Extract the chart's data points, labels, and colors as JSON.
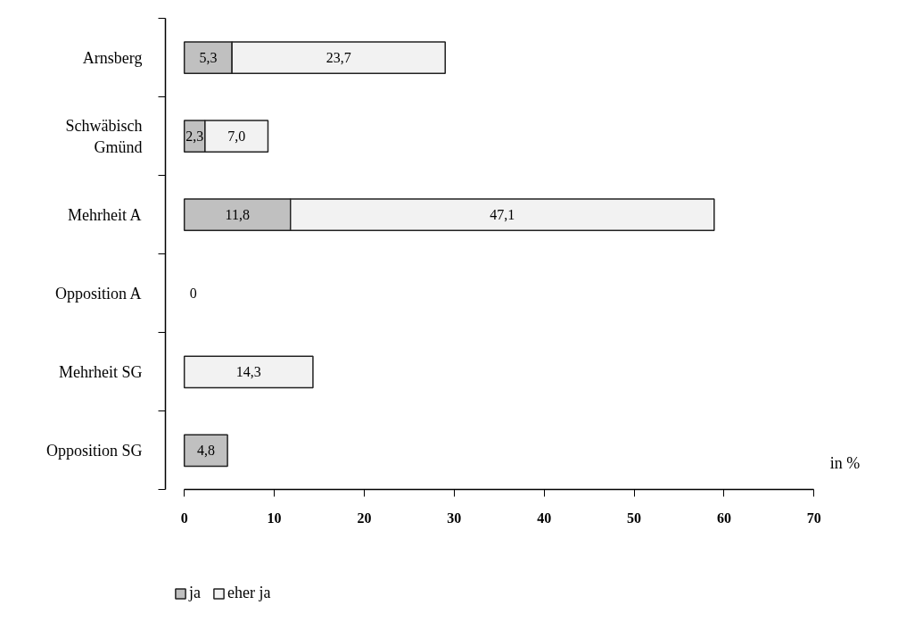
{
  "chart_data": {
    "type": "bar",
    "orientation": "horizontal",
    "stacked": true,
    "xlabel": "in %",
    "categories": [
      "Arnsberg",
      "Schwäbisch Gmünd",
      "Mehrheit A",
      "Opposition A",
      "Mehrheit SG",
      "Opposition SG"
    ],
    "series": [
      {
        "name": "ja",
        "color": "#c0c0c0",
        "values": [
          5.3,
          2.3,
          11.8,
          0,
          null,
          4.8
        ],
        "value_labels": [
          "5,3",
          "2,3",
          "11,8",
          "0",
          null,
          "4,8"
        ]
      },
      {
        "name": "eher ja",
        "color": "#f2f2f2",
        "values": [
          23.7,
          7.0,
          47.1,
          null,
          14.3,
          null
        ],
        "value_labels": [
          "23,7",
          "7,0",
          "47,1",
          null,
          "14,3",
          null
        ]
      }
    ],
    "xlim": [
      0,
      70
    ],
    "xticks": [
      0,
      10,
      20,
      30,
      40,
      50,
      60,
      70
    ],
    "grid": false,
    "legend": "bottom left"
  }
}
